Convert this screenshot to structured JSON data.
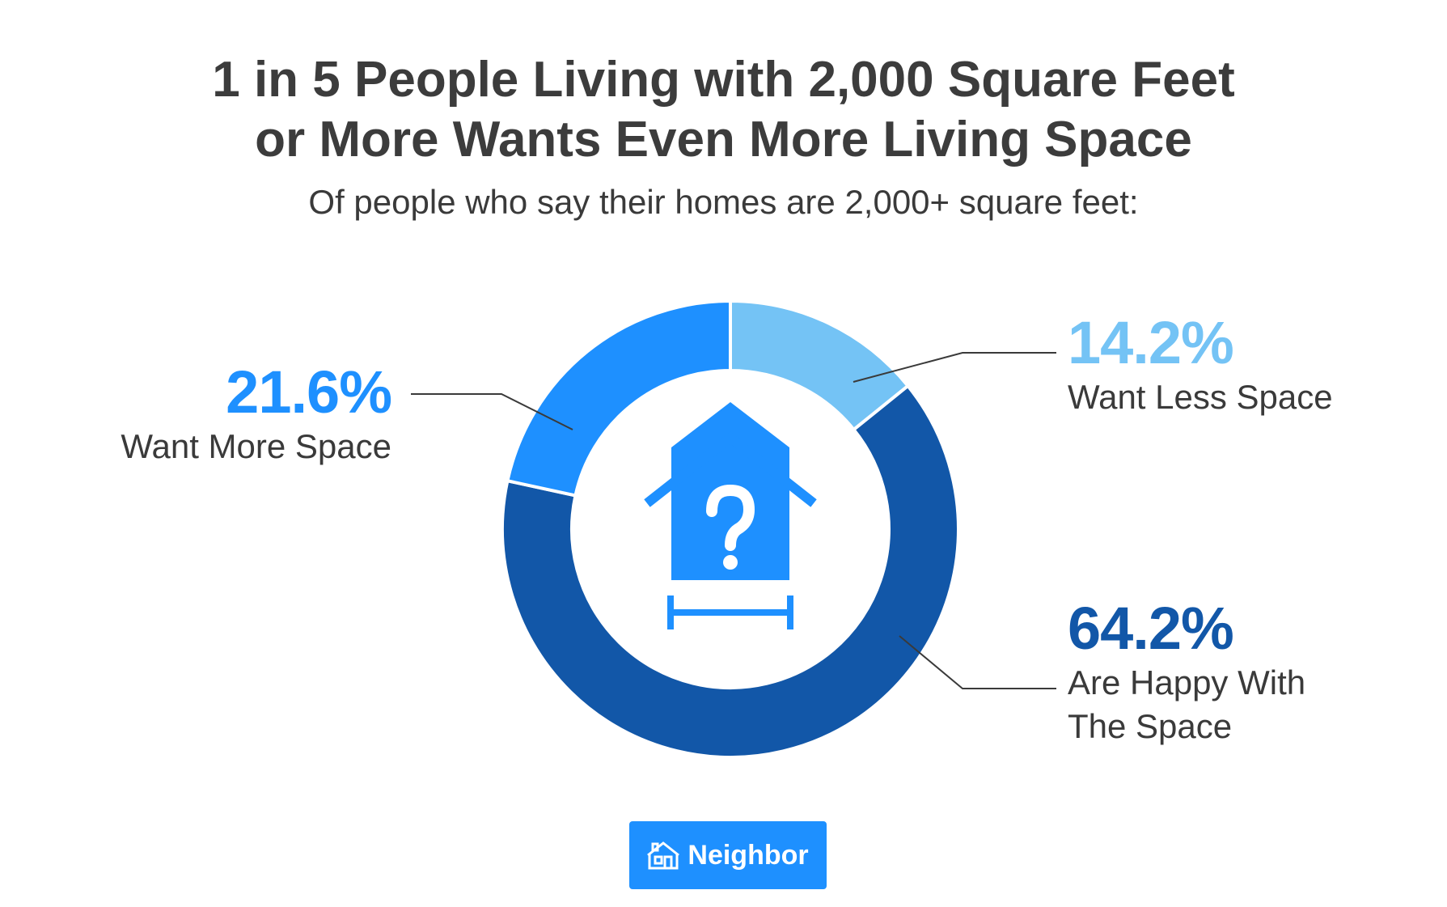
{
  "title": {
    "line1": "1 in 5 People Living with 2,000 Square Feet",
    "line2": "or More Wants Even More Living Space"
  },
  "subtitle": "Of people who say their homes are 2,000+ square feet:",
  "chart_data": {
    "type": "pie",
    "style": "donut",
    "slices": [
      {
        "label_lines": [
          "Want Less Space"
        ],
        "value": 14.2,
        "value_label": "14.2%",
        "color": "#74c3f5"
      },
      {
        "label_lines": [
          "Are Happy With",
          "The Space"
        ],
        "value": 64.2,
        "value_label": "64.2%",
        "color": "#1257a8"
      },
      {
        "label_lines": [
          "Want More Space"
        ],
        "value": 21.6,
        "value_label": "21.6%",
        "color": "#1e90ff"
      }
    ],
    "center_icon": "house-question-icon"
  },
  "logo": {
    "icon": "neighbor-house-icon",
    "text": "Neighbor",
    "color": "#1e90ff"
  }
}
